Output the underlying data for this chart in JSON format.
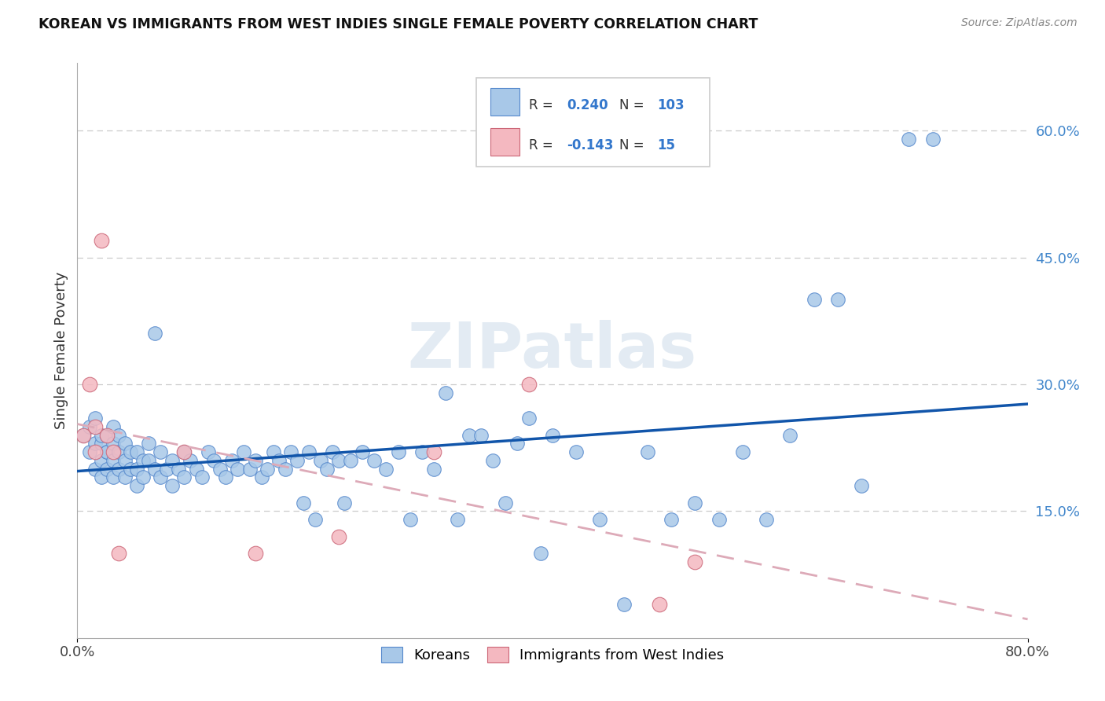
{
  "title": "KOREAN VS IMMIGRANTS FROM WEST INDIES SINGLE FEMALE POVERTY CORRELATION CHART",
  "source": "Source: ZipAtlas.com",
  "ylabel": "Single Female Poverty",
  "xlim": [
    0.0,
    0.8
  ],
  "ylim": [
    0.0,
    0.68
  ],
  "blue_color": "#a8c8e8",
  "blue_edge_color": "#5588cc",
  "pink_color": "#f4b8c0",
  "pink_edge_color": "#cc6677",
  "blue_line_color": "#1155aa",
  "pink_line_color": "#ddaab8",
  "watermark": "ZIPatlas",
  "legend_r_korean": "0.240",
  "legend_n_korean": "103",
  "legend_r_west": "-0.143",
  "legend_n_west": "15",
  "koreans_x": [
    0.005,
    0.01,
    0.01,
    0.015,
    0.015,
    0.015,
    0.02,
    0.02,
    0.02,
    0.02,
    0.025,
    0.025,
    0.025,
    0.025,
    0.03,
    0.03,
    0.03,
    0.03,
    0.035,
    0.035,
    0.035,
    0.04,
    0.04,
    0.04,
    0.045,
    0.045,
    0.05,
    0.05,
    0.05,
    0.055,
    0.055,
    0.06,
    0.06,
    0.065,
    0.065,
    0.07,
    0.07,
    0.075,
    0.08,
    0.08,
    0.085,
    0.09,
    0.09,
    0.095,
    0.1,
    0.105,
    0.11,
    0.115,
    0.12,
    0.125,
    0.13,
    0.135,
    0.14,
    0.145,
    0.15,
    0.155,
    0.16,
    0.165,
    0.17,
    0.175,
    0.18,
    0.185,
    0.19,
    0.195,
    0.2,
    0.205,
    0.21,
    0.215,
    0.22,
    0.225,
    0.23,
    0.24,
    0.25,
    0.26,
    0.27,
    0.28,
    0.29,
    0.3,
    0.31,
    0.32,
    0.33,
    0.34,
    0.35,
    0.36,
    0.37,
    0.38,
    0.39,
    0.4,
    0.42,
    0.44,
    0.46,
    0.48,
    0.5,
    0.52,
    0.54,
    0.56,
    0.58,
    0.6,
    0.62,
    0.64,
    0.66,
    0.7,
    0.72
  ],
  "koreans_y": [
    0.24,
    0.22,
    0.25,
    0.2,
    0.23,
    0.26,
    0.21,
    0.23,
    0.19,
    0.24,
    0.22,
    0.2,
    0.24,
    0.22,
    0.21,
    0.23,
    0.19,
    0.25,
    0.2,
    0.22,
    0.24,
    0.19,
    0.21,
    0.23,
    0.2,
    0.22,
    0.18,
    0.2,
    0.22,
    0.19,
    0.21,
    0.21,
    0.23,
    0.36,
    0.2,
    0.22,
    0.19,
    0.2,
    0.21,
    0.18,
    0.2,
    0.22,
    0.19,
    0.21,
    0.2,
    0.19,
    0.22,
    0.21,
    0.2,
    0.19,
    0.21,
    0.2,
    0.22,
    0.2,
    0.21,
    0.19,
    0.2,
    0.22,
    0.21,
    0.2,
    0.22,
    0.21,
    0.16,
    0.22,
    0.14,
    0.21,
    0.2,
    0.22,
    0.21,
    0.16,
    0.21,
    0.22,
    0.21,
    0.2,
    0.22,
    0.14,
    0.22,
    0.2,
    0.29,
    0.14,
    0.24,
    0.24,
    0.21,
    0.16,
    0.23,
    0.26,
    0.1,
    0.24,
    0.22,
    0.14,
    0.04,
    0.22,
    0.14,
    0.16,
    0.14,
    0.22,
    0.14,
    0.24,
    0.4,
    0.4,
    0.18,
    0.59,
    0.59
  ],
  "west_x": [
    0.005,
    0.01,
    0.015,
    0.015,
    0.02,
    0.025,
    0.03,
    0.035,
    0.09,
    0.15,
    0.22,
    0.3,
    0.38,
    0.49,
    0.52
  ],
  "west_y": [
    0.24,
    0.3,
    0.22,
    0.25,
    0.47,
    0.24,
    0.22,
    0.1,
    0.22,
    0.1,
    0.12,
    0.22,
    0.3,
    0.04,
    0.09
  ]
}
